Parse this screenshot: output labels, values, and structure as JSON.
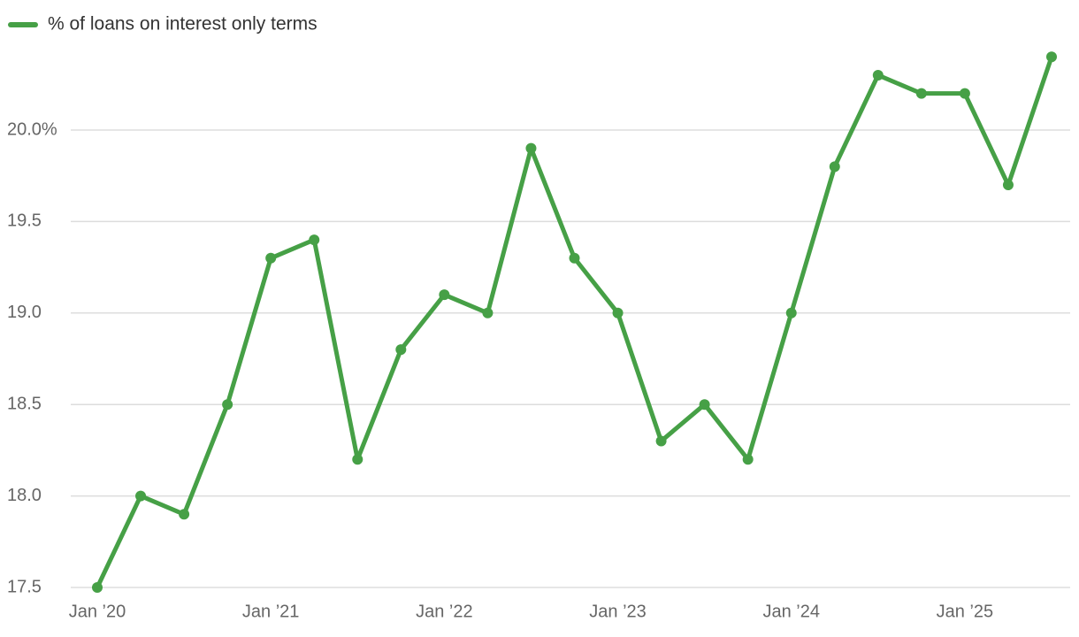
{
  "chart_data": {
    "type": "line",
    "categories": [
      "Jan ’20",
      null,
      null,
      null,
      "Jan ’21",
      null,
      null,
      null,
      "Jan ’22",
      null,
      null,
      null,
      "Jan ’23",
      null,
      null,
      null,
      "Jan ’24",
      null,
      null,
      null,
      "Jan ’25",
      null,
      null
    ],
    "series": [
      {
        "name": "% of loans on interest only terms",
        "color": "#46a046",
        "values": [
          17.5,
          18.0,
          17.9,
          18.5,
          19.3,
          19.4,
          18.2,
          18.8,
          19.1,
          19.0,
          19.9,
          19.3,
          19.0,
          18.3,
          18.5,
          18.2,
          19.0,
          19.8,
          20.3,
          20.2,
          20.2,
          19.7,
          20.4
        ]
      }
    ],
    "ylim": [
      17.5,
      20.5
    ],
    "yticks": [
      17.5,
      {
        "value": 18,
        "label": "18.0"
      },
      {
        "value": 18.5,
        "label": "18.5"
      },
      {
        "value": 19,
        "label": "19.0"
      },
      {
        "value": 19.5,
        "label": "19.5"
      },
      {
        "value": 20,
        "label": "20.0%"
      }
    ],
    "grid": true,
    "legend": "top-left"
  }
}
